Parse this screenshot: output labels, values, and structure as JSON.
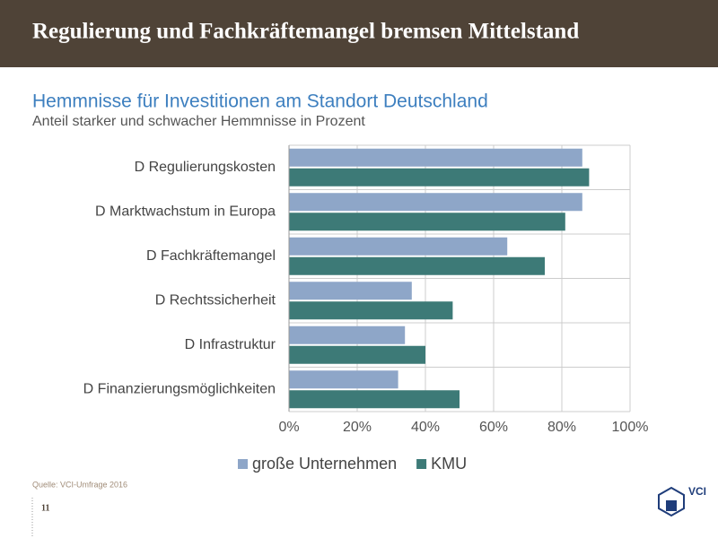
{
  "header": {
    "title": "Regulierung und Fachkräftemangel bremsen Mittelstand"
  },
  "chart_data": {
    "type": "hbar",
    "title": "Hemmnisse für Investitionen am Standort Deutschland",
    "subtitle": "Anteil starker und schwacher Hemmnisse in Prozent",
    "categories": [
      "D Regulierungskosten",
      "D Marktwachstum in Europa",
      "D Fachkräftemangel",
      "D Rechtssicherheit",
      "D Infrastruktur",
      "D Finanzierungsmöglichkeiten"
    ],
    "series": [
      {
        "name": "große Unternehmen",
        "color": "#8ea6c8",
        "values": [
          86,
          86,
          64,
          36,
          34,
          32
        ]
      },
      {
        "name": "KMU",
        "color": "#3d7a77",
        "values": [
          88,
          81,
          75,
          48,
          40,
          50
        ]
      }
    ],
    "xlim": [
      0,
      100
    ],
    "xticks": [
      {
        "value": 0,
        "label": "0%"
      },
      {
        "value": 20,
        "label": "20%"
      },
      {
        "value": 40,
        "label": "40%"
      },
      {
        "value": 60,
        "label": "60%"
      },
      {
        "value": 80,
        "label": "80%"
      },
      {
        "value": 100,
        "label": "100%"
      }
    ],
    "grid": true,
    "legend": "bottom"
  },
  "footer": {
    "source": "Quelle: VCI-Umfrage 2016",
    "page": "11",
    "logo_text": "VCI"
  }
}
